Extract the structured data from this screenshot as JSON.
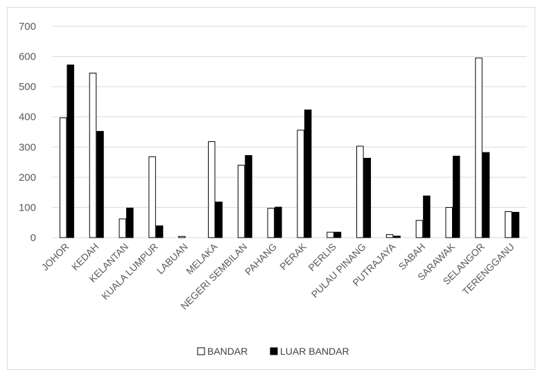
{
  "chart_data": {
    "type": "bar",
    "title": "",
    "xlabel": "",
    "ylabel": "",
    "ylim": [
      0,
      700
    ],
    "yticks": [
      0,
      100,
      200,
      300,
      400,
      500,
      600,
      700
    ],
    "grid": true,
    "legend_position": "bottom",
    "categories": [
      "JOHOR",
      "KEDAH",
      "KELANTAN",
      "KUALA LUMPUR",
      "LABUAN",
      "MELAKA",
      "NEGERI SEMBILAN",
      "PAHANG",
      "PERAK",
      "PERLIS",
      "PULAU PINANG",
      "PUTRAJAYA",
      "SABAH",
      "SARAWAK",
      "SELANGOR",
      "TERENGGANU"
    ],
    "series": [
      {
        "name": "BANDAR",
        "fill": "#ffffff",
        "stroke": "#000000",
        "values": [
          397,
          545,
          62,
          268,
          4,
          318,
          240,
          97,
          356,
          18,
          303,
          10,
          57,
          100,
          595,
          86
        ]
      },
      {
        "name": "LUAR BANDAR",
        "fill": "#000000",
        "stroke": "#000000",
        "values": [
          572,
          352,
          98,
          39,
          0,
          118,
          272,
          101,
          423,
          18,
          263,
          5,
          138,
          270,
          282,
          84
        ]
      }
    ]
  },
  "colors": {
    "grid": "#d9d9d9",
    "text": "#595959",
    "frame": "#d9d9d9"
  }
}
